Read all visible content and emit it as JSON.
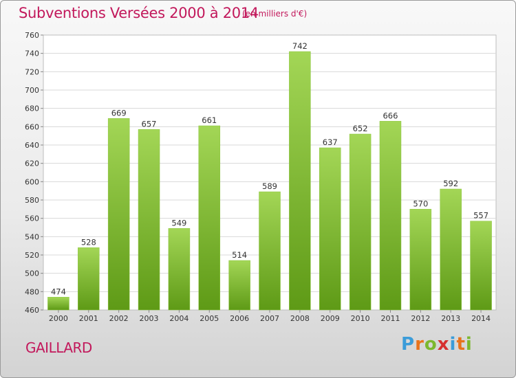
{
  "header": {
    "title": "Subventions Versées 2000 à 2014",
    "subtitle": "(en milliers d'€)"
  },
  "footer": {
    "city": "GAILLARD",
    "logo": {
      "text": "Proxiti",
      "colors": [
        "#3b9cd9",
        "#e8731c",
        "#7cb82f",
        "#d62f2f",
        "#3b9cd9",
        "#e8731c",
        "#7cb82f"
      ]
    }
  },
  "colors": {
    "accent": "#c2185b",
    "bar_top": "#a3d656",
    "bar_bottom": "#5e9a16",
    "grid": "#d8d8d8",
    "axis_text": "#333333"
  },
  "chart_data": {
    "type": "bar",
    "title": "Subventions Versées 2000 à 2014",
    "subtitle": "(en milliers d'€)",
    "xlabel": "",
    "ylabel": "",
    "categories": [
      "2000",
      "2001",
      "2002",
      "2003",
      "2004",
      "2005",
      "2006",
      "2007",
      "2008",
      "2009",
      "2010",
      "2011",
      "2012",
      "2013",
      "2014"
    ],
    "values": [
      474,
      528,
      669,
      657,
      549,
      661,
      514,
      589,
      742,
      637,
      652,
      666,
      570,
      592,
      557
    ],
    "ylim": [
      460,
      760
    ],
    "yticks": [
      460,
      480,
      500,
      520,
      540,
      560,
      580,
      600,
      620,
      640,
      660,
      680,
      700,
      720,
      740,
      760
    ],
    "grid": true,
    "data_labels": true
  }
}
